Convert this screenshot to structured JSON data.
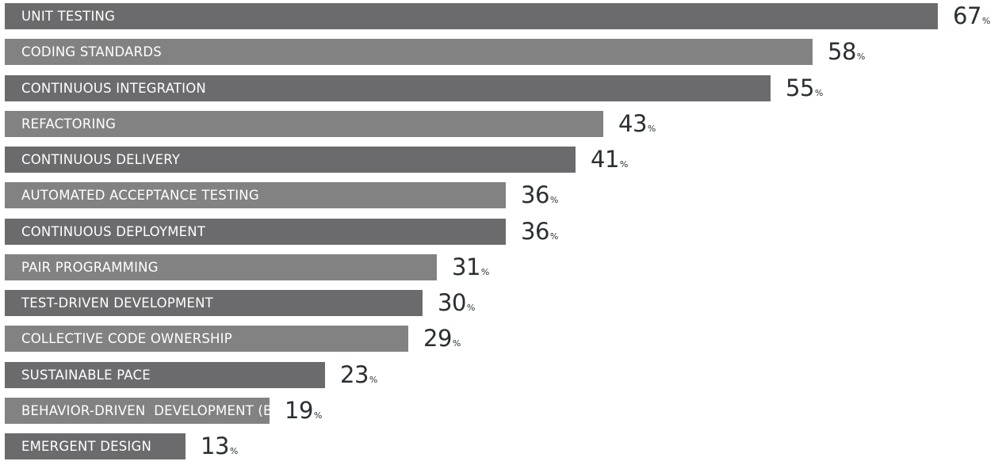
{
  "chart_data": {
    "type": "bar",
    "orientation": "horizontal",
    "categories": [
      "UNIT TESTING",
      "CODING STANDARDS",
      "CONTINUOUS INTEGRATION",
      "REFACTORING",
      "CONTINUOUS DELIVERY",
      "AUTOMATED ACCEPTANCE TESTING",
      "CONTINUOUS DEPLOYMENT",
      "PAIR PROGRAMMING",
      "TEST-DRIVEN DEVELOPMENT",
      "COLLECTIVE CODE OWNERSHIP",
      "SUSTAINABLE PACE",
      "BEHAVIOR-DRIVEN  DEVELOPMENT (BDD)",
      "EMERGENT DESIGN"
    ],
    "values": [
      67,
      58,
      55,
      43,
      41,
      36,
      36,
      31,
      30,
      29,
      23,
      19,
      13
    ],
    "value_unit": "%",
    "title": "",
    "xlabel": "",
    "ylabel": "",
    "xlim": [
      0,
      67
    ],
    "grid": false,
    "legend": "none",
    "colors": {
      "bar_dark": "#6b6b6d",
      "bar_light": "#828283",
      "label_text": "#ffffff",
      "value_text": "#2b2f33"
    }
  }
}
